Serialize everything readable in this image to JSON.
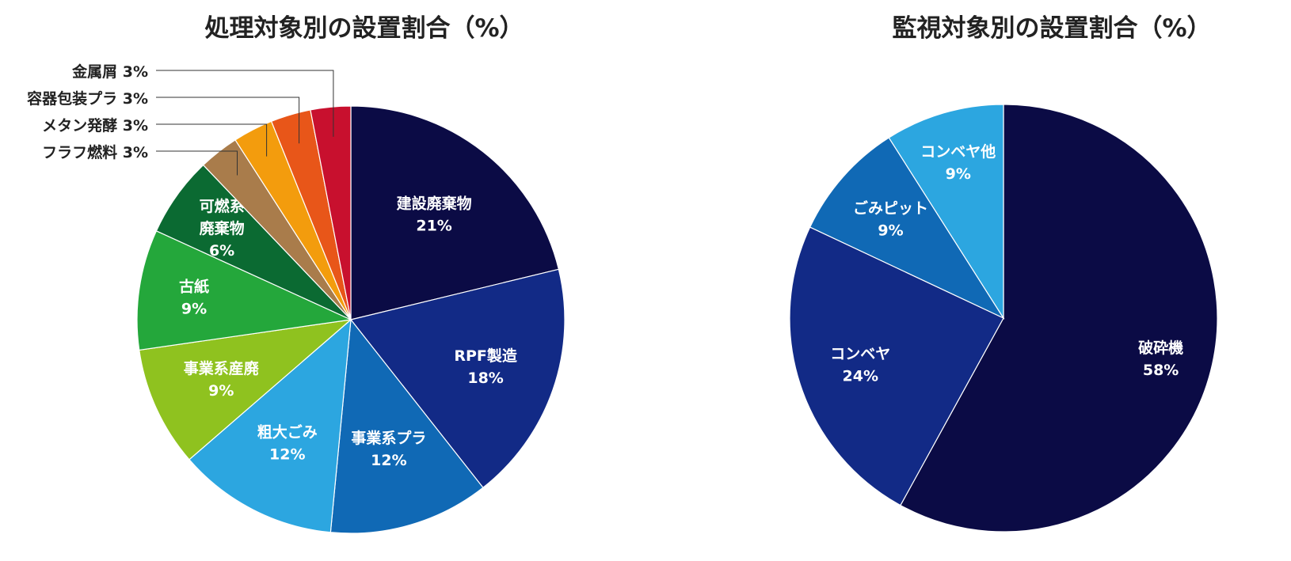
{
  "chart_data": [
    {
      "type": "pie",
      "title": "処理対象別の設置割合（%）",
      "slices": [
        {
          "label": "建設廃棄物",
          "value": 21,
          "value_label": "21%",
          "color": "#0b0b45"
        },
        {
          "label": "RPF製造",
          "value": 18,
          "value_label": "18%",
          "color": "#122a86"
        },
        {
          "label": "事業系プラ",
          "value": 12,
          "value_label": "12%",
          "color": "#1069b5"
        },
        {
          "label": "粗大ごみ",
          "value": 12,
          "value_label": "12%",
          "color": "#2ca6e0"
        },
        {
          "label": "事業系産廃",
          "value": 9,
          "value_label": "9%",
          "color": "#8fc21f"
        },
        {
          "label": "古紙",
          "value": 9,
          "value_label": "9%",
          "color": "#24a73b"
        },
        {
          "label": "可燃系廃棄物",
          "value": 6,
          "value_label": "6%",
          "color": "#0b6a32",
          "label_lines": [
            "可燃系",
            "廃棄物",
            "6%"
          ]
        },
        {
          "label": "フラフ燃料",
          "value": 3,
          "value_label": "3%",
          "color": "#a97c4b",
          "callout": "フラフ燃料 3%"
        },
        {
          "label": "メタン発酵",
          "value": 3,
          "value_label": "3%",
          "color": "#f39c0d",
          "callout": "メタン発酵 3%"
        },
        {
          "label": "容器包装プラ",
          "value": 3,
          "value_label": "3%",
          "color": "#e85619",
          "callout": "容器包装プラ 3%"
        },
        {
          "label": "金属屑",
          "value": 3,
          "value_label": "3%",
          "color": "#c8102e",
          "callout": "金属屑 3%"
        }
      ]
    },
    {
      "type": "pie",
      "title": "監視対象別の設置割合（%）",
      "slices": [
        {
          "label": "破砕機",
          "value": 58,
          "value_label": "58%",
          "color": "#0b0b45"
        },
        {
          "label": "コンベヤ",
          "value": 24,
          "value_label": "24%",
          "color": "#122a86"
        },
        {
          "label": "ごみピット",
          "value": 9,
          "value_label": "9%",
          "color": "#1069b5"
        },
        {
          "label": "コンベヤ他",
          "value": 9,
          "value_label": "9%",
          "color": "#2ca6e0"
        }
      ]
    }
  ]
}
